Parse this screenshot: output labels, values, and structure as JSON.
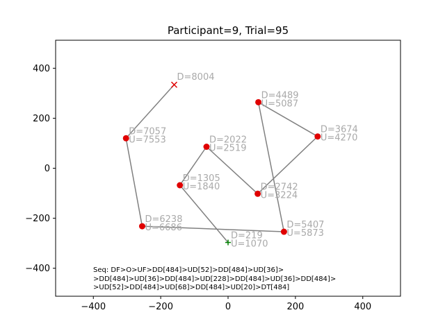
{
  "chart_data": {
    "type": "scatter",
    "title": "Participant=9, Trial=95",
    "xlabel": "",
    "ylabel": "",
    "xlim": [
      -512,
      512
    ],
    "ylim": [
      -512,
      512
    ],
    "xticks": [
      -400,
      -200,
      0,
      200,
      400
    ],
    "yticks": [
      -400,
      -200,
      0,
      200,
      400
    ],
    "xtick_labels": [
      "−400",
      "−200",
      "0",
      "200",
      "400"
    ],
    "ytick_labels": [
      "−400",
      "−200",
      "0",
      "200",
      "400"
    ],
    "grid": false,
    "colors": {
      "line": "#808080",
      "point": "#e00000",
      "label": "#a9a9a9",
      "start": "#008000",
      "end": "#e00000"
    },
    "path": [
      {
        "x": 0,
        "y": -297
      },
      {
        "x": -143,
        "y": -68
      },
      {
        "x": -64,
        "y": 86
      },
      {
        "x": 88,
        "y": -102
      },
      {
        "x": 266,
        "y": 127
      },
      {
        "x": 90,
        "y": 264
      },
      {
        "x": 166,
        "y": -254
      },
      {
        "x": -255,
        "y": -232
      },
      {
        "x": -303,
        "y": 120
      },
      {
        "x": -160,
        "y": 334
      }
    ],
    "points": [
      {
        "x": -143,
        "y": -68,
        "d": "D=1305",
        "u": "U=1840"
      },
      {
        "x": -64,
        "y": 86,
        "d": "D=2022",
        "u": "U=2519"
      },
      {
        "x": 88,
        "y": -102,
        "d": "D=2742",
        "u": "U=3224"
      },
      {
        "x": 266,
        "y": 127,
        "d": "D=3674",
        "u": "U=4270"
      },
      {
        "x": 90,
        "y": 264,
        "d": "D=4489",
        "u": "U=5087"
      },
      {
        "x": 166,
        "y": -254,
        "d": "D=5407",
        "u": "U=5873"
      },
      {
        "x": -255,
        "y": -232,
        "d": "D=6238",
        "u": "U=6686"
      },
      {
        "x": -303,
        "y": 120,
        "d": "D=7057",
        "u": "U=7553"
      }
    ],
    "start": {
      "x": 0,
      "y": -297,
      "d": "D=219",
      "u": "U=1070",
      "marker": "+"
    },
    "end": {
      "x": -160,
      "y": 334,
      "d": "D=8004",
      "marker": "x"
    },
    "annotation": [
      "Seq: DF>O>UF>DD[484]>UD[52]>DD[484]>UD[36]>",
      ">DD[484]>UD[36]>DD[484]>UD[228]>DD[484]>UD[36]>DD[484]>",
      ">UD[52]>DD[484]>UD[68]>DD[484]>UD[20]>DT[484]"
    ]
  }
}
